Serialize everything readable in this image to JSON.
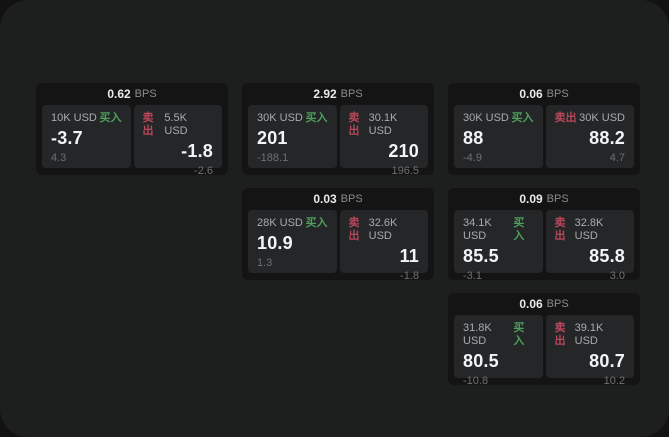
{
  "labels": {
    "bps_unit": "BPS",
    "buy": "买入",
    "sell": "卖出"
  },
  "colors": {
    "buy_accent": "#4f9f5c",
    "sell_accent": "#b8475a",
    "surface": "#1d1e1e",
    "card": "#141414",
    "panel": "#242628"
  },
  "cards": [
    {
      "grid": {
        "row": 1,
        "col": 1
      },
      "bps": "0.62",
      "buy": {
        "size": "10K USD",
        "price": "-3.7",
        "sub": "4.3"
      },
      "sell": {
        "size": "5.5K USD",
        "price": "-1.8",
        "sub": "-2.6"
      }
    },
    {
      "grid": {
        "row": 1,
        "col": 2
      },
      "bps": "2.92",
      "buy": {
        "size": "30K USD",
        "price": "201",
        "sub": "-188.1"
      },
      "sell": {
        "size": "30.1K USD",
        "price": "210",
        "sub": "196.5"
      }
    },
    {
      "grid": {
        "row": 1,
        "col": 3
      },
      "bps": "0.06",
      "buy": {
        "size": "30K USD",
        "price": "88",
        "sub": "-4.9"
      },
      "sell": {
        "size": "30K USD",
        "price": "88.2",
        "sub": "4.7"
      }
    },
    {
      "grid": {
        "row": 2,
        "col": 2
      },
      "bps": "0.03",
      "buy": {
        "size": "28K USD",
        "price": "10.9",
        "sub": "1.3"
      },
      "sell": {
        "size": "32.6K USD",
        "price": "11",
        "sub": "-1.8"
      }
    },
    {
      "grid": {
        "row": 2,
        "col": 3
      },
      "bps": "0.09",
      "buy": {
        "size": "34.1K USD",
        "price": "85.5",
        "sub": "-3.1"
      },
      "sell": {
        "size": "32.8K USD",
        "price": "85.8",
        "sub": "3.0"
      }
    },
    {
      "grid": {
        "row": 3,
        "col": 3
      },
      "bps": "0.06",
      "buy": {
        "size": "31.8K USD",
        "price": "80.5",
        "sub": "-10.8"
      },
      "sell": {
        "size": "39.1K USD",
        "price": "80.7",
        "sub": "10.2"
      }
    }
  ]
}
